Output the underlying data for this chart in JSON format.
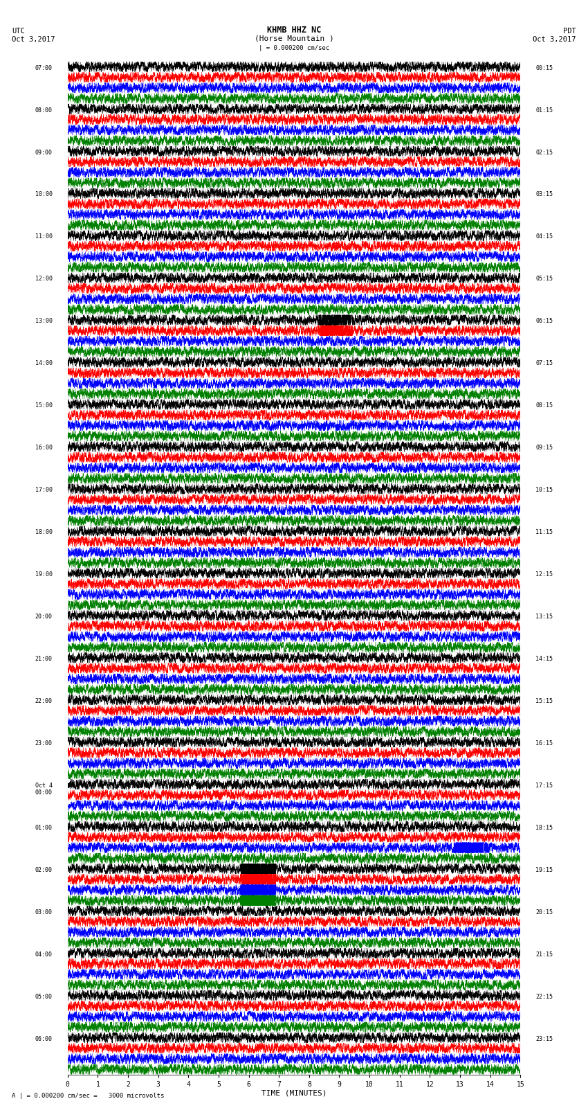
{
  "title_line1": "KHMB HHZ NC",
  "title_line2": "(Horse Mountain )",
  "scale_label": "| = 0.000200 cm/sec",
  "scale_label2": "A | = 0.000200 cm/sec =   3000 microvolts",
  "xlabel": "TIME (MINUTES)",
  "left_header_line1": "UTC",
  "left_header_line2": "Oct 3,2017",
  "right_header_line1": "PDT",
  "right_header_line2": "Oct 3,2017",
  "utc_labels": [
    "07:00",
    "08:00",
    "09:00",
    "10:00",
    "11:00",
    "12:00",
    "13:00",
    "14:00",
    "15:00",
    "16:00",
    "17:00",
    "18:00",
    "19:00",
    "20:00",
    "21:00",
    "22:00",
    "23:00",
    "Oct 4\n00:00",
    "01:00",
    "02:00",
    "03:00",
    "04:00",
    "05:00",
    "06:00"
  ],
  "pdt_labels": [
    "00:15",
    "01:15",
    "02:15",
    "03:15",
    "04:15",
    "05:15",
    "06:15",
    "07:15",
    "08:15",
    "09:15",
    "10:15",
    "11:15",
    "12:15",
    "13:15",
    "14:15",
    "15:15",
    "16:15",
    "17:15",
    "18:15",
    "19:15",
    "20:15",
    "21:15",
    "22:15",
    "23:15"
  ],
  "n_rows": 24,
  "traces_per_row": 4,
  "trace_colors": [
    "black",
    "red",
    "blue",
    "green"
  ],
  "x_ticks": [
    0,
    1,
    2,
    3,
    4,
    5,
    6,
    7,
    8,
    9,
    10,
    11,
    12,
    13,
    14,
    15
  ],
  "background_color": "white",
  "figsize": [
    8.5,
    16.13
  ]
}
